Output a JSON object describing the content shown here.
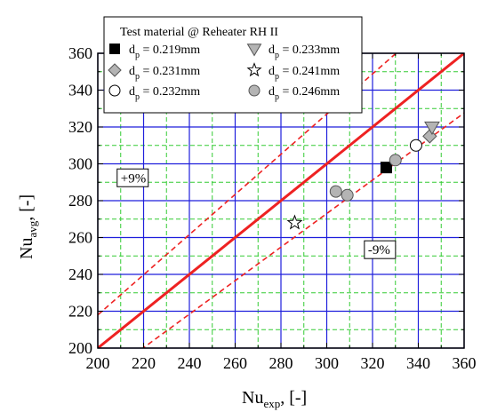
{
  "chart_data": {
    "type": "scatter",
    "xlabel": {
      "main": "Nu",
      "sub": "exp",
      "suffix": ", [-]"
    },
    "ylabel": {
      "main": "Nu",
      "sub": "avg",
      "suffix": ", [-]"
    },
    "xlim": [
      200,
      360
    ],
    "ylim": [
      200,
      360
    ],
    "x_ticks": [
      "200",
      "220",
      "240",
      "260",
      "280",
      "300",
      "320",
      "340",
      "360"
    ],
    "y_ticks": [
      "200",
      "220",
      "240",
      "260",
      "280",
      "300",
      "320",
      "340",
      "360"
    ],
    "grid": {
      "major": true,
      "minor": true,
      "major_color": "#1f1fdc",
      "minor_color": "#33cc33"
    },
    "legend": {
      "title": "Test material @ Reheater RH II",
      "placement": "top-left"
    },
    "series": [
      {
        "name_main": "d",
        "name_sub": "p",
        "name_value": " = 0.219mm",
        "marker": "square",
        "fill": "#000000",
        "stroke": "#000000",
        "points": [
          [
            326,
            298
          ]
        ]
      },
      {
        "name_main": "d",
        "name_sub": "p",
        "name_value": " = 0.231mm",
        "marker": "diamond",
        "fill": "#b4b4b4",
        "stroke": "#555555",
        "points": [
          [
            345,
            315
          ]
        ]
      },
      {
        "name_main": "d",
        "name_sub": "p",
        "name_value": " = 0.232mm",
        "marker": "circle",
        "fill": "#ffffff",
        "stroke": "#000000",
        "points": [
          [
            339,
            310
          ]
        ]
      },
      {
        "name_main": "d",
        "name_sub": "p",
        "name_value": " = 0.233mm",
        "marker": "triangle-down",
        "fill": "#b4b4b4",
        "stroke": "#555555",
        "points": [
          [
            346,
            320
          ]
        ]
      },
      {
        "name_main": "d",
        "name_sub": "p",
        "name_value": " = 0.241mm",
        "marker": "star",
        "fill": "#ffffff",
        "stroke": "#000000",
        "points": [
          [
            286,
            268
          ]
        ]
      },
      {
        "name_main": "d",
        "name_sub": "p",
        "name_value": " = 0.246mm",
        "marker": "circle",
        "fill": "#b4b4b4",
        "stroke": "#555555",
        "points": [
          [
            304,
            285
          ],
          [
            309,
            283
          ],
          [
            330,
            302
          ]
        ]
      }
    ],
    "reference_lines": [
      {
        "label": "",
        "slope": 1.0,
        "style": "solid",
        "color": "#ee2222"
      },
      {
        "label": "+9%",
        "slope": 1.09,
        "style": "dashed",
        "color": "#ee2222"
      },
      {
        "label": "-9%",
        "slope": 0.91,
        "style": "dashed",
        "color": "#ee2222"
      }
    ],
    "annotations": [
      {
        "text": "+9%",
        "x": 210,
        "y": 290
      },
      {
        "text": "-9%",
        "x": 318,
        "y": 251
      }
    ]
  }
}
